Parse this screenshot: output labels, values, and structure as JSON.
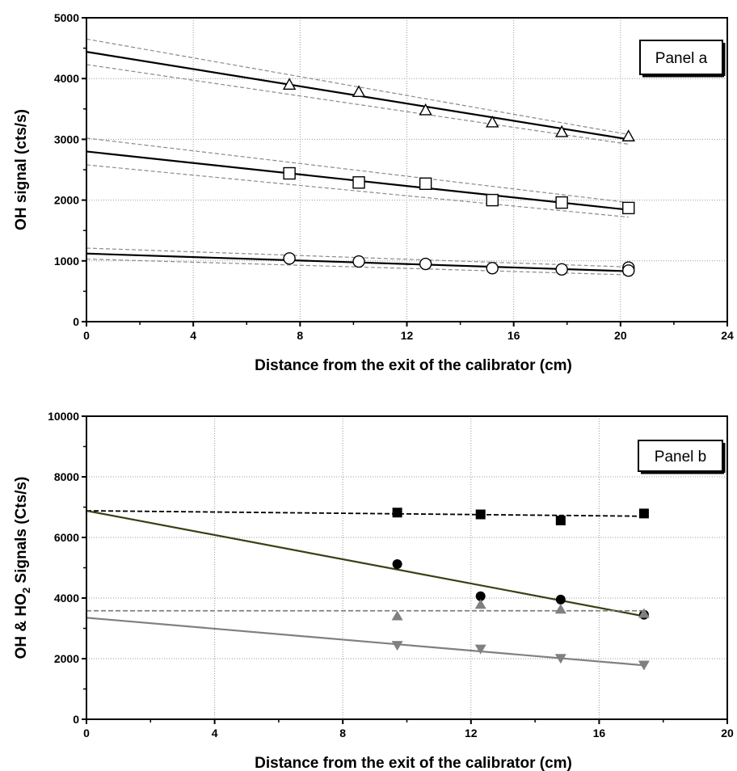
{
  "chart_data": [
    {
      "type": "scatter",
      "panel_label": "Panel a",
      "xlabel": "Distance from the exit of the calibrator (cm)",
      "ylabel": "OH signal (cts/s)",
      "xlim": [
        0,
        24
      ],
      "ylim": [
        0,
        5000
      ],
      "xticks": [
        "0",
        "4",
        "8",
        "12",
        "16",
        "20",
        "24"
      ],
      "yticks": [
        "0",
        "1000",
        "2000",
        "3000",
        "4000",
        "5000"
      ],
      "grid": true,
      "series": [
        {
          "marker": "triangle-open",
          "color": "#000000",
          "x": [
            7.6,
            10.2,
            12.7,
            15.2,
            17.8,
            20.3
          ],
          "y": [
            3900,
            3780,
            3480,
            3280,
            3120,
            3050
          ],
          "fit": [
            [
              0,
              4440
            ],
            [
              20.3,
              3000
            ]
          ],
          "ci_upper": [
            [
              0,
              4650
            ],
            [
              20.3,
              3080
            ]
          ],
          "ci_lower": [
            [
              0,
              4230
            ],
            [
              20.3,
              2920
            ]
          ]
        },
        {
          "marker": "square-open",
          "color": "#000000",
          "x": [
            7.6,
            10.2,
            12.7,
            15.2,
            17.8,
            20.3
          ],
          "y": [
            2440,
            2290,
            2270,
            2000,
            1960,
            1870
          ],
          "fit": [
            [
              0,
              2800
            ],
            [
              20.3,
              1840
            ]
          ],
          "ci_upper": [
            [
              0,
              3020
            ],
            [
              20.3,
              1960
            ]
          ],
          "ci_lower": [
            [
              0,
              2580
            ],
            [
              20.3,
              1720
            ]
          ]
        },
        {
          "marker": "circle-open",
          "color": "#000000",
          "x": [
            7.6,
            10.2,
            12.7,
            15.2,
            17.8,
            20.3,
            20.3
          ],
          "y": [
            1040,
            990,
            950,
            880,
            860,
            890,
            840
          ],
          "fit": [
            [
              0,
              1120
            ],
            [
              20.3,
              830
            ]
          ],
          "ci_upper": [
            [
              0,
              1210
            ],
            [
              20.3,
              900
            ]
          ],
          "ci_lower": [
            [
              0,
              1030
            ],
            [
              20.3,
              770
            ]
          ]
        }
      ]
    },
    {
      "type": "scatter",
      "panel_label": "Panel b",
      "xlabel": "Distance from the exit of the calibrator (cm)",
      "ylabel": "OH & HO",
      "ylabel_sub": "2",
      "ylabel_suffix": " Signals (Cts/s)",
      "xlim": [
        0,
        20
      ],
      "ylim": [
        0,
        10000
      ],
      "xticks": [
        "0",
        "4",
        "8",
        "12",
        "16",
        "20"
      ],
      "yticks": [
        "0",
        "2000",
        "4000",
        "6000",
        "8000",
        "10000"
      ],
      "grid": true,
      "series": [
        {
          "marker": "square-filled",
          "color": "#000000",
          "x": [
            9.7,
            12.3,
            14.8,
            17.4
          ],
          "y": [
            6820,
            6760,
            6560,
            6790
          ],
          "fit": [
            [
              0,
              6880
            ],
            [
              17.4,
              6700
            ]
          ],
          "fit_style": "dashed",
          "fit_color": "#000000"
        },
        {
          "marker": "circle-filled",
          "color": "#000000",
          "x": [
            9.7,
            12.3,
            14.8,
            17.4
          ],
          "y": [
            5120,
            4060,
            3950,
            3450
          ],
          "fit": [
            [
              0,
              6880
            ],
            [
              17.4,
              3400
            ]
          ],
          "fit_style": "solid",
          "fit_color": "#3d3d16"
        },
        {
          "marker": "triangle-up-filled",
          "color": "#808080",
          "x": [
            9.7,
            12.3,
            14.8,
            17.4
          ],
          "y": [
            3400,
            3780,
            3620,
            3480
          ],
          "fit": [
            [
              0,
              3580
            ],
            [
              17.4,
              3580
            ]
          ],
          "fit_style": "dashed",
          "fit_color": "#808080"
        },
        {
          "marker": "triangle-down-filled",
          "color": "#808080",
          "x": [
            9.7,
            12.3,
            14.8,
            17.4
          ],
          "y": [
            2450,
            2330,
            2020,
            1800
          ],
          "fit": [
            [
              0,
              3350
            ],
            [
              17.4,
              1780
            ]
          ],
          "fit_style": "solid",
          "fit_color": "#808080"
        }
      ]
    }
  ]
}
